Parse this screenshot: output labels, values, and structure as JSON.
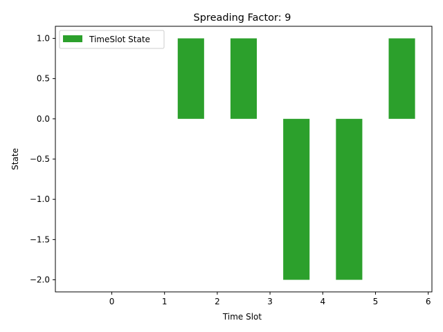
{
  "chart_data": {
    "type": "bar",
    "title": "Spreading Factor: 9",
    "xlabel": "Time Slot",
    "ylabel": "State",
    "series": [
      {
        "name": "TimeSlot State",
        "color": "#2ca02c",
        "bars": [
          {
            "x": 1.5,
            "value": 1.0
          },
          {
            "x": 2.5,
            "value": 1.0
          },
          {
            "x": 3.5,
            "value": -2.0
          },
          {
            "x": 4.5,
            "value": -2.0
          },
          {
            "x": 5.5,
            "value": 1.0
          }
        ]
      }
    ],
    "bar_width": 0.5,
    "xlim": [
      -1.07,
      6.07
    ],
    "ylim": [
      -2.15,
      1.15
    ],
    "xticks": [
      0,
      1,
      2,
      3,
      4,
      5,
      6
    ],
    "xtick_labels": [
      "0",
      "1",
      "2",
      "3",
      "4",
      "5",
      "6"
    ],
    "yticks": [
      1.0,
      0.5,
      0.0,
      -0.5,
      -1.0,
      -1.5,
      -2.0
    ],
    "ytick_labels": [
      "1.0",
      "0.5",
      "0.0",
      "−0.5",
      "−1.0",
      "−1.5",
      "−2.0"
    ],
    "legend": "top-left",
    "grid": false
  }
}
